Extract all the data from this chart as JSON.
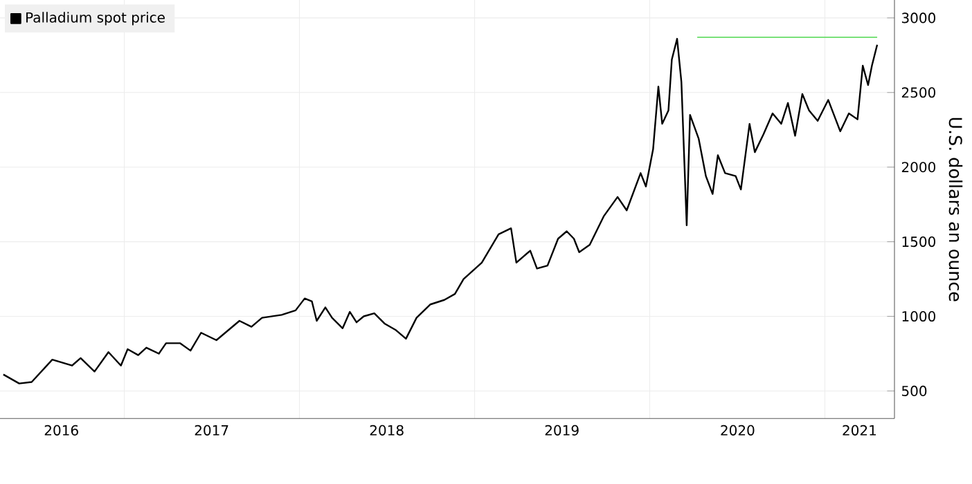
{
  "chart_data": {
    "type": "line",
    "ylabel": "U.S. dollars an ounce",
    "xlim": [
      "2016-04-16",
      "2021-05-26"
    ],
    "ylim": [
      315,
      3120
    ],
    "xticks": [
      {
        "value": "2016-08-22",
        "label": "2016"
      },
      {
        "value": "2017-01-01",
        "label": null
      },
      {
        "value": "2017-07-02",
        "label": "2017"
      },
      {
        "value": "2018-01-01",
        "label": null
      },
      {
        "value": "2018-07-02",
        "label": "2018"
      },
      {
        "value": "2019-01-01",
        "label": null
      },
      {
        "value": "2019-07-02",
        "label": "2019"
      },
      {
        "value": "2020-01-01",
        "label": null
      },
      {
        "value": "2020-07-02",
        "label": "2020"
      },
      {
        "value": "2021-01-01",
        "label": null
      },
      {
        "value": "2021-03-14",
        "label": "2021"
      }
    ],
    "yticks": [
      500,
      1000,
      1500,
      2000,
      2500,
      3000
    ],
    "grid": true,
    "legend": "top left",
    "marker": "none",
    "line_style": "solid",
    "series": [
      {
        "name": "Palladium spot price",
        "color": "#000000",
        "x": [
          "2016-04-23",
          "2016-05-26",
          "2016-06-21",
          "2016-08-03",
          "2016-09-13",
          "2016-10-01",
          "2016-10-30",
          "2016-11-28",
          "2016-12-24",
          "2017-01-08",
          "2017-01-30",
          "2017-02-16",
          "2017-03-14",
          "2017-03-29",
          "2017-04-27",
          "2017-05-19",
          "2017-06-10",
          "2017-07-12",
          "2017-08-29",
          "2017-09-23",
          "2017-10-15",
          "2017-11-25",
          "2017-12-24",
          "2018-01-12",
          "2018-01-27",
          "2018-02-06",
          "2018-02-24",
          "2018-03-10",
          "2018-04-01",
          "2018-04-16",
          "2018-04-30",
          "2018-05-15",
          "2018-06-06",
          "2018-06-28",
          "2018-07-20",
          "2018-08-11",
          "2018-09-02",
          "2018-10-01",
          "2018-10-30",
          "2018-11-21",
          "2018-12-09",
          "2019-01-16",
          "2019-02-20",
          "2019-03-18",
          "2019-03-29",
          "2019-04-27",
          "2019-05-11",
          "2019-06-02",
          "2019-06-24",
          "2019-07-12",
          "2019-07-27",
          "2019-08-07",
          "2019-08-29",
          "2019-09-27",
          "2019-10-26",
          "2019-11-14",
          "2019-12-13",
          "2019-12-24",
          "2020-01-08",
          "2020-01-19",
          "2020-01-27",
          "2020-02-09",
          "2020-02-16",
          "2020-02-27",
          "2020-03-07",
          "2020-03-18",
          "2020-03-25",
          "2020-04-12",
          "2020-04-27",
          "2020-05-11",
          "2020-05-22",
          "2020-06-06",
          "2020-06-28",
          "2020-07-09",
          "2020-07-27",
          "2020-08-07",
          "2020-08-25",
          "2020-09-13",
          "2020-10-01",
          "2020-10-15",
          "2020-10-30",
          "2020-11-14",
          "2020-11-28",
          "2020-12-16",
          "2021-01-08",
          "2021-02-02",
          "2021-02-20",
          "2021-03-10",
          "2021-03-21",
          "2021-04-01",
          "2021-04-09",
          "2021-04-20"
        ],
        "values": [
          610,
          550,
          560,
          710,
          670,
          720,
          630,
          760,
          670,
          780,
          740,
          790,
          750,
          820,
          820,
          770,
          890,
          840,
          970,
          930,
          990,
          1010,
          1040,
          1120,
          1100,
          970,
          1060,
          990,
          920,
          1030,
          960,
          1000,
          1020,
          950,
          910,
          850,
          990,
          1080,
          1110,
          1150,
          1250,
          1360,
          1550,
          1590,
          1360,
          1440,
          1320,
          1340,
          1520,
          1570,
          1520,
          1430,
          1480,
          1670,
          1800,
          1710,
          1960,
          1870,
          2120,
          2540,
          2290,
          2380,
          2720,
          2860,
          2570,
          1610,
          2350,
          2190,
          1940,
          1820,
          2080,
          1960,
          1940,
          1850,
          2290,
          2100,
          2220,
          2360,
          2290,
          2430,
          2210,
          2490,
          2380,
          2310,
          2450,
          2240,
          2360,
          2320,
          2680,
          2550,
          2680,
          2820
        ]
      },
      {
        "color": "#66dd66",
        "x": [
          "2021-04-20",
          "2020-04-09"
        ],
        "values": [
          2870,
          2870
        ]
      }
    ]
  }
}
